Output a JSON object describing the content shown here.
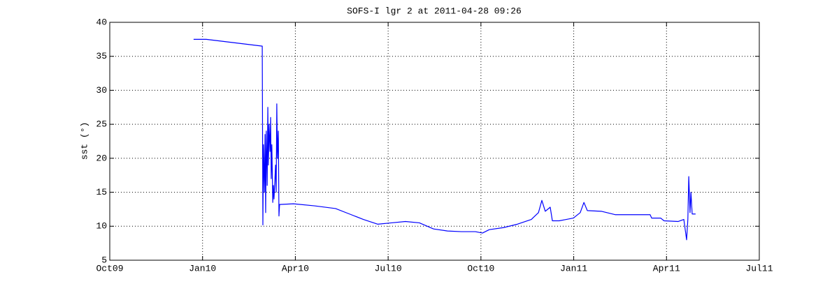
{
  "chart_data": {
    "type": "line",
    "title": "SOFS-I lgr 2 at 2011-04-28 09:26",
    "y_label": "sst (°)",
    "x": [
      2.71,
      3.12,
      4.93,
      4.95,
      4.97,
      5.0,
      5.02,
      5.04,
      5.06,
      5.09,
      5.11,
      5.13,
      5.15,
      5.18,
      5.2,
      5.22,
      5.24,
      5.27,
      5.29,
      5.31,
      5.36,
      5.38,
      5.4,
      5.42,
      5.45,
      5.47,
      5.49,
      5.94,
      6.62,
      7.3,
      7.75,
      8.2,
      8.66,
      9.11,
      9.56,
      10.01,
      10.47,
      10.92,
      11.37,
      11.82,
      12.05,
      12.27,
      12.73,
      13.18,
      13.63,
      13.86,
      13.97,
      14.08,
      14.24,
      14.31,
      14.53,
      14.76,
      14.99,
      15.21,
      15.33,
      15.44,
      15.89,
      16.34,
      17.47,
      17.52,
      17.81,
      17.92,
      18.38,
      18.56,
      18.65,
      18.69,
      18.72,
      18.76,
      18.79,
      18.83,
      18.94
    ],
    "series": [
      {
        "name": "sst",
        "color": "#0000ff",
        "values": [
          37.5,
          37.5,
          36.5,
          10.2,
          22,
          15,
          23.5,
          12,
          24,
          16,
          27.5,
          19,
          25,
          21,
          26,
          17,
          22,
          13.5,
          16,
          14,
          19,
          15,
          28,
          20,
          24,
          11.5,
          13.2,
          13.3,
          13,
          12.6,
          11.8,
          11,
          10.3,
          10.5,
          10.7,
          10.5,
          9.6,
          9.3,
          9.2,
          9.2,
          9,
          9.5,
          9.8,
          10.3,
          11,
          12,
          13.8,
          12.2,
          12.8,
          10.8,
          10.8,
          11,
          11.2,
          12,
          13.5,
          12.3,
          12.2,
          11.7,
          11.7,
          11.2,
          11.2,
          10.8,
          10.7,
          11,
          8,
          11,
          17.3,
          12,
          15,
          11.8,
          11.8
        ]
      }
    ],
    "xlim": [
      0,
      21
    ],
    "xticks": [
      {
        "value": 0,
        "label": "Oct09"
      },
      {
        "value": 3,
        "label": "Jan10"
      },
      {
        "value": 6,
        "label": "Apr10"
      },
      {
        "value": 9,
        "label": "Jul10"
      },
      {
        "value": 12,
        "label": "Oct10"
      },
      {
        "value": 15,
        "label": "Jan11"
      },
      {
        "value": 18,
        "label": "Apr11"
      },
      {
        "value": 21,
        "label": "Jul11"
      }
    ],
    "ylim": [
      5,
      40
    ],
    "yticks": [
      5,
      10,
      15,
      20,
      25,
      30,
      35,
      40
    ],
    "grid": true
  }
}
